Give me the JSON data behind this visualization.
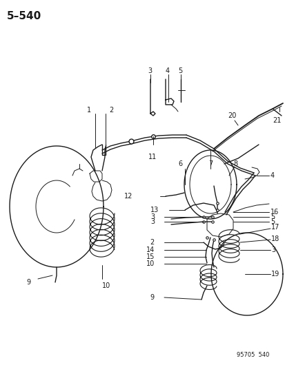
{
  "title": "5–540",
  "footer": "95705  540",
  "bg": "#ffffff",
  "lc": "#1a1a1a",
  "figsize": [
    4.14,
    5.33
  ],
  "dpi": 100,
  "title_fs": 11,
  "label_fs": 7.0
}
